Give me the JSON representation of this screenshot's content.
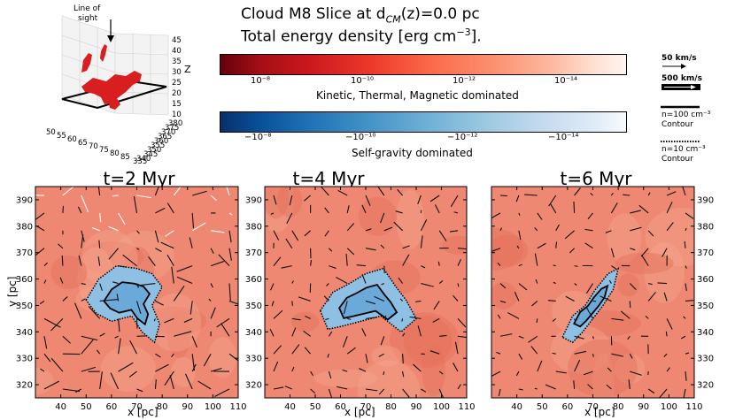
{
  "header": {
    "line1": "Cloud M8  Slice at d",
    "line1_sub": "CM",
    "line1_rest": "(z)=0.0 pc",
    "line2": "Total energy density [erg cm",
    "line2_sup": "−3",
    "line2_end": "]."
  },
  "inset3d": {
    "line_of_sight_1": "Line of",
    "line_of_sight_2": "sight",
    "z_label": "Z",
    "z_ticks": [
      "45",
      "40",
      "35",
      "30",
      "25",
      "20",
      "15",
      "10"
    ],
    "x_ticks": [
      "50",
      "55",
      "60",
      "65",
      "70",
      "75",
      "80",
      "85"
    ],
    "y_ticks": [
      "380",
      "375",
      "370",
      "365",
      "360",
      "355",
      "350",
      "345",
      "340",
      "335"
    ]
  },
  "colorbars": {
    "positive": {
      "ticks": [
        "10⁻⁸",
        "10⁻¹⁰",
        "10⁻¹²",
        "10⁻¹⁴"
      ],
      "label": "Kinetic, Thermal, Magnetic dominated",
      "color_dark": "#67000d",
      "color_light": "#fff5f0"
    },
    "negative": {
      "ticks": [
        "−10⁻⁸",
        "−10⁻¹⁰",
        "−10⁻¹²",
        "−10⁻¹⁴"
      ],
      "label": "Self-gravity dominated",
      "color_dark": "#08306b",
      "color_light": "#f7fbff"
    }
  },
  "legend": {
    "arrow_small": "50 km/s",
    "arrow_large": "500 km/s",
    "solid_1": "n=100 cm⁻³",
    "solid_2": "Contour",
    "dotted_1": "n=10  cm⁻³",
    "dotted_2": "Contour"
  },
  "chart_data": {
    "type": "heatmap",
    "panels": [
      {
        "title": "t=2 Myr"
      },
      {
        "title": "t=4 Myr"
      },
      {
        "title": "t=6 Myr"
      }
    ],
    "xlabel": "x [pc]",
    "ylabel": "y [pc]",
    "xlim": [
      30,
      110
    ],
    "ylim": [
      315,
      395
    ],
    "x_ticks": [
      40,
      50,
      60,
      70,
      80,
      90,
      100,
      110
    ],
    "y_ticks": [
      320,
      330,
      340,
      350,
      360,
      370,
      380,
      390
    ],
    "background_color": "#ee8872",
    "gravity_color": "#8ec0e4"
  }
}
